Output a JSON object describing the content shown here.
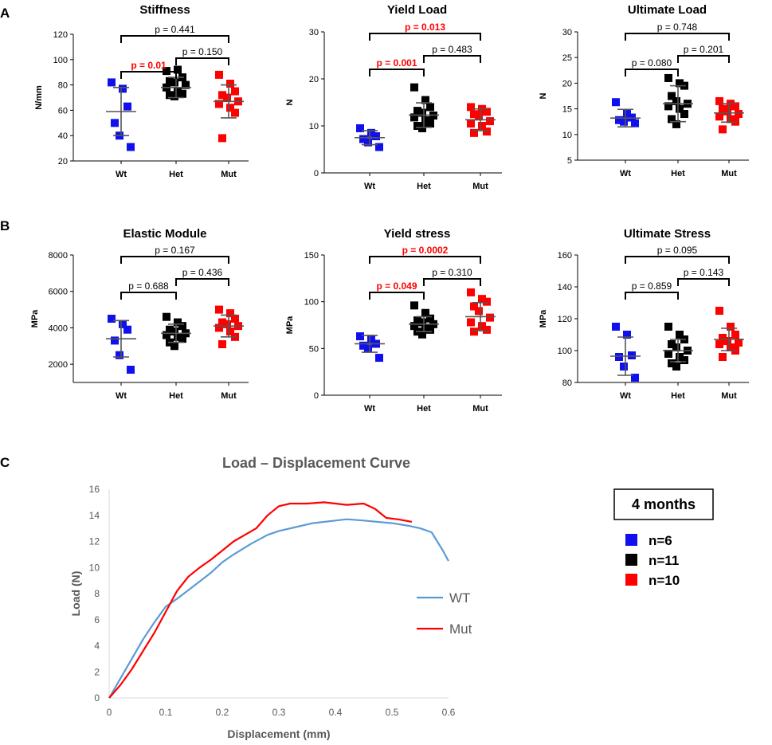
{
  "panel_labels": [
    "A",
    "B",
    "C"
  ],
  "legend": {
    "title": "4 months",
    "items": [
      {
        "label": "n=6",
        "color": "#1010ee"
      },
      {
        "label": "n=11",
        "color": "#000000"
      },
      {
        "label": "n=10",
        "color": "#ff0000"
      }
    ]
  },
  "colors": {
    "wt": "#1010ee",
    "het": "#000000",
    "mut": "#ff0000",
    "wt_line": "#5b9bd5",
    "mut_line": "#ff0000"
  },
  "chart_data": [
    {
      "id": "stiffness",
      "type": "scatter",
      "title": "Stiffness",
      "ylabel": "N/mm",
      "ylim": [
        20,
        120
      ],
      "yticks": [
        20,
        40,
        60,
        80,
        100,
        120
      ],
      "categories": [
        "Wt",
        "Het",
        "Mut"
      ],
      "groups": [
        {
          "name": "Wt",
          "mean": 59,
          "sd": 19,
          "points": [
            82,
            77,
            63,
            50,
            40,
            31
          ]
        },
        {
          "name": "Het",
          "mean": 78,
          "sd": 8,
          "points": [
            91,
            92,
            86,
            83,
            82,
            80,
            78,
            75,
            73,
            72,
            71
          ]
        },
        {
          "name": "Mut",
          "mean": 67,
          "sd": 13,
          "points": [
            88,
            81,
            75,
            72,
            70,
            67,
            65,
            62,
            58,
            38
          ]
        }
      ],
      "comparisons": [
        {
          "from": "Wt",
          "to": "Het",
          "label": "p = 0.01",
          "highlight": true
        },
        {
          "from": "Het",
          "to": "Mut",
          "label": "p = 0.150",
          "highlight": false
        },
        {
          "from": "Wt",
          "to": "Mut",
          "label": "p = 0.441",
          "highlight": false
        }
      ]
    },
    {
      "id": "yield-load",
      "type": "scatter",
      "title": "Yield Load",
      "ylabel": "N",
      "ylim": [
        0,
        30
      ],
      "yticks": [
        0,
        10,
        20,
        30
      ],
      "categories": [
        "Wt",
        "Het",
        "Mut"
      ],
      "groups": [
        {
          "name": "Wt",
          "mean": 7.5,
          "sd": 1.5,
          "points": [
            9.5,
            8.5,
            7.8,
            7.2,
            6.5,
            5.5
          ]
        },
        {
          "name": "Het",
          "mean": 12.3,
          "sd": 2.6,
          "points": [
            18.2,
            15.5,
            14.0,
            13.2,
            12.8,
            12.2,
            11.8,
            11.2,
            10.5,
            10.0,
            9.5
          ]
        },
        {
          "name": "Mut",
          "mean": 11.3,
          "sd": 2.3,
          "points": [
            14.0,
            13.6,
            13.0,
            12.5,
            12.0,
            11.0,
            10.5,
            10.0,
            8.8,
            8.5
          ]
        }
      ],
      "comparisons": [
        {
          "from": "Wt",
          "to": "Het",
          "label": "p = 0.001",
          "highlight": true
        },
        {
          "from": "Het",
          "to": "Mut",
          "label": "p = 0.483",
          "highlight": false
        },
        {
          "from": "Wt",
          "to": "Mut",
          "label": "p = 0.013",
          "highlight": true
        }
      ]
    },
    {
      "id": "ultimate-load",
      "type": "scatter",
      "title": "Ultimate Load",
      "ylabel": "N",
      "ylim": [
        5,
        30
      ],
      "yticks": [
        5,
        10,
        15,
        20,
        25,
        30
      ],
      "categories": [
        "Wt",
        "Het",
        "Mut"
      ],
      "groups": [
        {
          "name": "Wt",
          "mean": 13.2,
          "sd": 1.7,
          "points": [
            16.3,
            14.0,
            13.3,
            12.8,
            12.5,
            12.2
          ]
        },
        {
          "name": "Het",
          "mean": 16.0,
          "sd": 3.5,
          "points": [
            21.0,
            20.0,
            19.5,
            17.5,
            16.5,
            16.0,
            15.5,
            15.0,
            14.0,
            13.0,
            12.0
          ]
        },
        {
          "name": "Mut",
          "mean": 14.2,
          "sd": 1.8,
          "points": [
            16.5,
            16.0,
            15.5,
            15.0,
            14.5,
            14.0,
            13.5,
            13.0,
            12.5,
            11.0
          ]
        }
      ],
      "comparisons": [
        {
          "from": "Wt",
          "to": "Het",
          "label": "p = 0.080",
          "highlight": false
        },
        {
          "from": "Het",
          "to": "Mut",
          "label": "p = 0.201",
          "highlight": false
        },
        {
          "from": "Wt",
          "to": "Mut",
          "label": "p = 0.748",
          "highlight": false
        }
      ]
    },
    {
      "id": "elastic-module",
      "type": "scatter",
      "title": "Elastic Module",
      "ylabel": "MPa",
      "ylim": [
        1000,
        8000
      ],
      "yticks": [
        2000,
        4000,
        6000,
        8000
      ],
      "categories": [
        "Wt",
        "Het",
        "Mut"
      ],
      "groups": [
        {
          "name": "Wt",
          "mean": 3400,
          "sd": 1000,
          "points": [
            4500,
            4200,
            3900,
            3300,
            2500,
            1700
          ]
        },
        {
          "name": "Het",
          "mean": 3700,
          "sd": 500,
          "points": [
            4600,
            4300,
            4100,
            3900,
            3800,
            3700,
            3600,
            3500,
            3400,
            3200,
            3000
          ]
        },
        {
          "name": "Mut",
          "mean": 4100,
          "sd": 600,
          "points": [
            5000,
            4800,
            4500,
            4300,
            4200,
            4100,
            4000,
            3800,
            3500,
            3100
          ]
        }
      ],
      "comparisons": [
        {
          "from": "Wt",
          "to": "Het",
          "label": "p = 0.688",
          "highlight": false
        },
        {
          "from": "Het",
          "to": "Mut",
          "label": "p = 0.436",
          "highlight": false
        },
        {
          "from": "Wt",
          "to": "Mut",
          "label": "p = 0.167",
          "highlight": false
        }
      ]
    },
    {
      "id": "yield-stress",
      "type": "scatter",
      "title": "Yield stress",
      "ylabel": "MPa",
      "ylim": [
        0,
        150
      ],
      "yticks": [
        0,
        50,
        100,
        150
      ],
      "categories": [
        "Wt",
        "Het",
        "Mut"
      ],
      "groups": [
        {
          "name": "Wt",
          "mean": 55,
          "sd": 9,
          "points": [
            63,
            60,
            55,
            53,
            50,
            40
          ]
        },
        {
          "name": "Het",
          "mean": 76,
          "sd": 8,
          "points": [
            96,
            88,
            82,
            80,
            78,
            76,
            74,
            72,
            70,
            68,
            65
          ]
        },
        {
          "name": "Mut",
          "mean": 84,
          "sd": 15,
          "points": [
            110,
            103,
            100,
            95,
            90,
            83,
            78,
            74,
            70,
            68
          ]
        }
      ],
      "comparisons": [
        {
          "from": "Wt",
          "to": "Het",
          "label": "p = 0.049",
          "highlight": true
        },
        {
          "from": "Het",
          "to": "Mut",
          "label": "p = 0.310",
          "highlight": false
        },
        {
          "from": "Wt",
          "to": "Mut",
          "label": "p = 0.0002",
          "highlight": true
        }
      ]
    },
    {
      "id": "ultimate-stress",
      "type": "scatter",
      "title": "Ultimate Stress",
      "ylabel": "MPa",
      "ylim": [
        80,
        160
      ],
      "yticks": [
        80,
        100,
        120,
        140,
        160
      ],
      "categories": [
        "Wt",
        "Het",
        "Mut"
      ],
      "groups": [
        {
          "name": "Wt",
          "mean": 96.5,
          "sd": 12,
          "points": [
            115,
            110,
            97,
            96,
            90,
            83
          ]
        },
        {
          "name": "Het",
          "mean": 100,
          "sd": 7,
          "points": [
            115,
            110,
            107,
            104,
            102,
            100,
            98,
            96,
            94,
            92,
            90
          ]
        },
        {
          "name": "Mut",
          "mean": 107,
          "sd": 7,
          "points": [
            125,
            115,
            110,
            108,
            106,
            105,
            104,
            102,
            100,
            96
          ]
        }
      ],
      "comparisons": [
        {
          "from": "Wt",
          "to": "Het",
          "label": "p = 0.859",
          "highlight": false
        },
        {
          "from": "Het",
          "to": "Mut",
          "label": "p = 0.143",
          "highlight": false
        },
        {
          "from": "Wt",
          "to": "Mut",
          "label": "p = 0.095",
          "highlight": false
        }
      ]
    },
    {
      "id": "load-displacement",
      "type": "line",
      "title": "Load – Displacement Curve",
      "xlabel": "Displacement (mm)",
      "ylabel": "Load (N)",
      "xlim": [
        0,
        0.6
      ],
      "ylim": [
        0,
        16
      ],
      "xticks": [
        0,
        0.1,
        0.2,
        0.3,
        0.4,
        0.5,
        0.6
      ],
      "yticks": [
        0,
        2,
        4,
        6,
        8,
        10,
        12,
        14,
        16
      ],
      "series": [
        {
          "name": "WT",
          "x": [
            0,
            0.02,
            0.04,
            0.06,
            0.08,
            0.1,
            0.12,
            0.15,
            0.18,
            0.2,
            0.22,
            0.25,
            0.28,
            0.3,
            0.33,
            0.36,
            0.4,
            0.42,
            0.45,
            0.5,
            0.53,
            0.55,
            0.57,
            0.58,
            0.59,
            0.6
          ],
          "y": [
            0,
            1.5,
            3.0,
            4.5,
            5.8,
            7.0,
            7.6,
            8.6,
            9.6,
            10.4,
            11.0,
            11.8,
            12.5,
            12.8,
            13.1,
            13.4,
            13.6,
            13.7,
            13.6,
            13.4,
            13.2,
            13.0,
            12.7,
            12.0,
            11.3,
            10.5
          ]
        },
        {
          "name": "Mut",
          "x": [
            0,
            0.02,
            0.04,
            0.06,
            0.08,
            0.1,
            0.12,
            0.14,
            0.16,
            0.18,
            0.2,
            0.22,
            0.24,
            0.26,
            0.28,
            0.3,
            0.32,
            0.35,
            0.38,
            0.4,
            0.42,
            0.45,
            0.47,
            0.49,
            0.51,
            0.535
          ],
          "y": [
            0,
            1.0,
            2.2,
            3.6,
            5.0,
            6.6,
            8.2,
            9.3,
            10.0,
            10.6,
            11.3,
            12.0,
            12.5,
            13.0,
            14.0,
            14.7,
            14.9,
            14.9,
            15.0,
            14.9,
            14.8,
            14.9,
            14.5,
            13.8,
            13.7,
            13.5
          ]
        }
      ]
    }
  ]
}
